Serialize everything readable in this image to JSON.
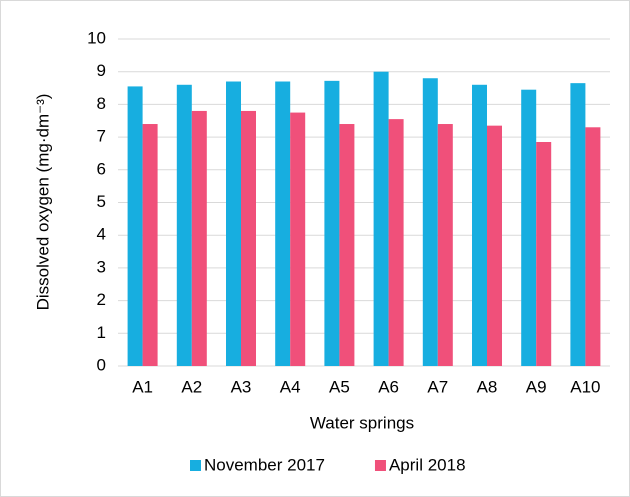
{
  "chart_data": {
    "type": "bar",
    "x_label": "Water springs",
    "y_label": "Dissolved oxygen  (mg·dm⁻³)",
    "categories": [
      "A1",
      "A2",
      "A3",
      "A4",
      "A5",
      "A6",
      "A7",
      "A8",
      "A9",
      "A10"
    ],
    "series": [
      {
        "name": "November 2017",
        "color": "#17aee0",
        "values": [
          8.55,
          8.6,
          8.7,
          8.7,
          8.72,
          9.0,
          8.8,
          8.6,
          8.45,
          8.65
        ]
      },
      {
        "name": "April 2018",
        "color": "#f0507a",
        "values": [
          7.4,
          7.8,
          7.8,
          7.75,
          7.4,
          7.55,
          7.4,
          7.35,
          6.85,
          7.3
        ]
      }
    ],
    "ylim": [
      0,
      10
    ],
    "yticks": [
      0,
      1,
      2,
      3,
      4,
      5,
      6,
      7,
      8,
      9,
      10
    ],
    "grid": true,
    "legend": "bottom"
  }
}
